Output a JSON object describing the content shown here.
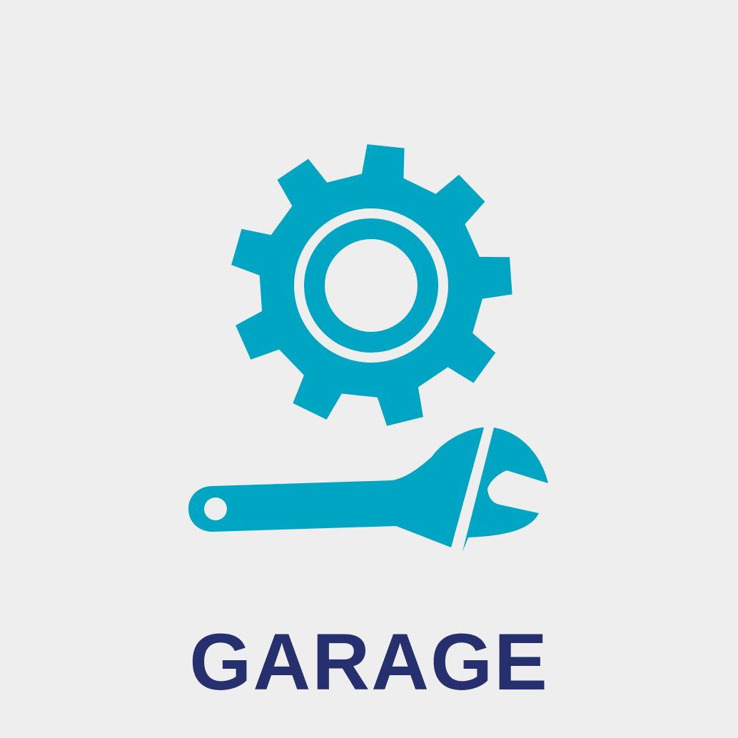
{
  "tile": {
    "label": "GARAGE",
    "icons": [
      "gear-icon",
      "wrench-icon"
    ]
  },
  "colors": {
    "background": "#eeeeee",
    "icon": "#00a5c3",
    "label": "#27306f"
  }
}
